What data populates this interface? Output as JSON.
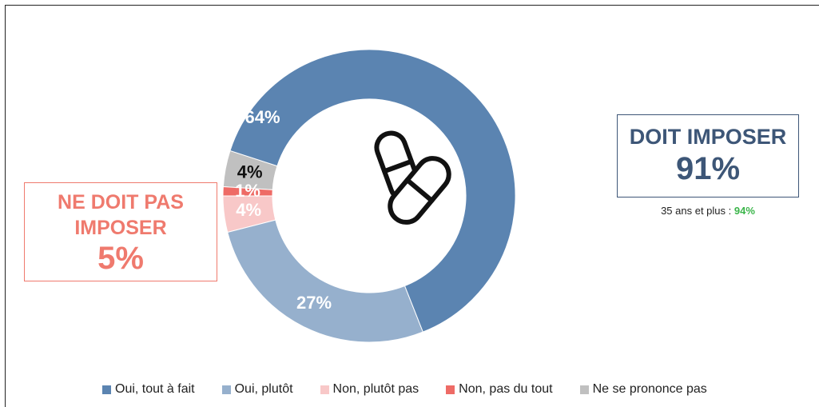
{
  "chart_data": {
    "type": "donut",
    "categories": [
      "Oui, tout à fait",
      "Oui, plutôt",
      "Non, plutôt pas",
      "Non, pas du tout",
      "Ne se prononce pas"
    ],
    "values": [
      64,
      27,
      4,
      1,
      4
    ],
    "value_labels": [
      "64%",
      "27%",
      "4%",
      "1%",
      "4%"
    ],
    "colors": [
      "#5b84b1",
      "#96b0cd",
      "#f8c8c8",
      "#ee6b66",
      "#c0c0c0"
    ],
    "legend": "bottom",
    "annotations": {
      "right_title": "DOIT IMPOSER",
      "right_value": "91%",
      "note": "35 ans et plus :",
      "note_value": "94%",
      "left_title": "NE DOIT PAS IMPOSER",
      "left_value": "5%"
    }
  }
}
